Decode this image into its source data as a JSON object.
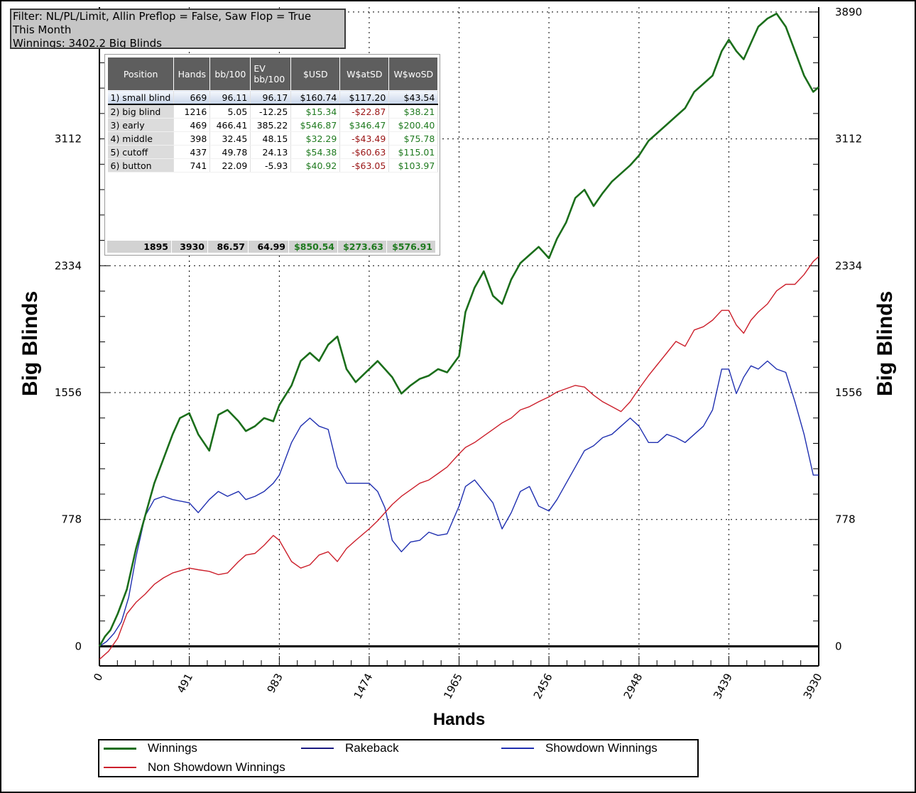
{
  "filter": {
    "line1": "Filter: NL/PL/Limit, Allin Preflop = False, Saw Flop = True",
    "line2": "This Month",
    "line3": "Winnings: 3402.2 Big Blinds"
  },
  "stats_table": {
    "headers": [
      "Position",
      "Hands",
      "bb/100",
      "EV\nbb/100",
      "$USD",
      "W$atSD",
      "W$woSD"
    ],
    "rows": [
      [
        "1) small blind",
        "669",
        "96.11",
        "96.17",
        "$160.74",
        "$117.20",
        "$43.54"
      ],
      [
        "2) big blind",
        "1216",
        "5.05",
        "-12.25",
        "$15.34",
        "-$22.87",
        "$38.21"
      ],
      [
        "3) early",
        "469",
        "466.41",
        "385.22",
        "$546.87",
        "$346.47",
        "$200.40"
      ],
      [
        "4) middle",
        "398",
        "32.45",
        "48.15",
        "$32.29",
        "-$43.49",
        "$75.78"
      ],
      [
        "5) cutoff",
        "437",
        "49.78",
        "24.13",
        "$54.38",
        "-$60.63",
        "$115.01"
      ],
      [
        "6) button",
        "741",
        "22.09",
        "-5.93",
        "$40.92",
        "-$63.05",
        "$103.97"
      ]
    ],
    "totals": [
      "1895",
      "3930",
      "86.57",
      "64.99",
      "$850.54",
      "$273.63",
      "$576.91"
    ]
  },
  "chart_data": {
    "type": "line",
    "xlabel": "Hands",
    "ylabel": "Big Blinds",
    "ylabel_right": "Big Blinds",
    "xlim": [
      0,
      3930
    ],
    "ylim": [
      -120,
      3920
    ],
    "x_ticks": [
      0,
      491,
      983,
      1474,
      1965,
      2456,
      2948,
      3439,
      3930
    ],
    "x_tick_labels": [
      "0",
      "491",
      "983",
      "1474",
      "1965",
      "2456",
      "2948",
      "3439",
      "3930"
    ],
    "y_ticks": [
      0,
      778,
      1556,
      2334,
      3112,
      3890
    ],
    "y_tick_labels": [
      "0",
      "778",
      "1556",
      "2334",
      "3112",
      "3890"
    ],
    "y_ticks_left_labeled": [
      "0",
      "778",
      "1556",
      "2334",
      "3112"
    ],
    "grid": true,
    "legend_position": "bottom",
    "series": [
      {
        "name": "Winnings",
        "color": "#1b6e1b",
        "points": [
          [
            0,
            0
          ],
          [
            30,
            60
          ],
          [
            60,
            100
          ],
          [
            100,
            200
          ],
          [
            150,
            350
          ],
          [
            200,
            600
          ],
          [
            250,
            800
          ],
          [
            300,
            1000
          ],
          [
            350,
            1150
          ],
          [
            400,
            1300
          ],
          [
            440,
            1400
          ],
          [
            491,
            1430
          ],
          [
            540,
            1300
          ],
          [
            600,
            1200
          ],
          [
            650,
            1420
          ],
          [
            700,
            1450
          ],
          [
            760,
            1380
          ],
          [
            800,
            1320
          ],
          [
            850,
            1350
          ],
          [
            900,
            1400
          ],
          [
            950,
            1380
          ],
          [
            983,
            1480
          ],
          [
            1050,
            1600
          ],
          [
            1100,
            1750
          ],
          [
            1150,
            1800
          ],
          [
            1200,
            1750
          ],
          [
            1250,
            1850
          ],
          [
            1300,
            1900
          ],
          [
            1350,
            1700
          ],
          [
            1400,
            1620
          ],
          [
            1474,
            1700
          ],
          [
            1520,
            1750
          ],
          [
            1560,
            1700
          ],
          [
            1600,
            1650
          ],
          [
            1650,
            1550
          ],
          [
            1700,
            1600
          ],
          [
            1750,
            1640
          ],
          [
            1800,
            1660
          ],
          [
            1850,
            1700
          ],
          [
            1900,
            1680
          ],
          [
            1965,
            1780
          ],
          [
            2000,
            2050
          ],
          [
            2050,
            2200
          ],
          [
            2100,
            2300
          ],
          [
            2150,
            2150
          ],
          [
            2200,
            2100
          ],
          [
            2250,
            2250
          ],
          [
            2300,
            2350
          ],
          [
            2350,
            2400
          ],
          [
            2400,
            2450
          ],
          [
            2456,
            2380
          ],
          [
            2500,
            2500
          ],
          [
            2550,
            2600
          ],
          [
            2600,
            2750
          ],
          [
            2650,
            2800
          ],
          [
            2700,
            2700
          ],
          [
            2750,
            2780
          ],
          [
            2800,
            2850
          ],
          [
            2850,
            2900
          ],
          [
            2900,
            2950
          ],
          [
            2948,
            3010
          ],
          [
            3000,
            3100
          ],
          [
            3050,
            3150
          ],
          [
            3100,
            3200
          ],
          [
            3150,
            3250
          ],
          [
            3200,
            3300
          ],
          [
            3250,
            3400
          ],
          [
            3300,
            3450
          ],
          [
            3350,
            3500
          ],
          [
            3400,
            3650
          ],
          [
            3439,
            3720
          ],
          [
            3480,
            3650
          ],
          [
            3520,
            3600
          ],
          [
            3560,
            3700
          ],
          [
            3600,
            3800
          ],
          [
            3650,
            3850
          ],
          [
            3700,
            3880
          ],
          [
            3750,
            3800
          ],
          [
            3800,
            3650
          ],
          [
            3850,
            3500
          ],
          [
            3900,
            3400
          ],
          [
            3930,
            3430
          ]
        ]
      },
      {
        "name": "Rakeback",
        "color": "#1a1a80",
        "points": []
      },
      {
        "name": "Showdown Winnings",
        "color": "#1f2fb0",
        "points": [
          [
            0,
            0
          ],
          [
            40,
            30
          ],
          [
            80,
            80
          ],
          [
            120,
            150
          ],
          [
            160,
            300
          ],
          [
            200,
            550
          ],
          [
            250,
            800
          ],
          [
            300,
            900
          ],
          [
            350,
            920
          ],
          [
            400,
            900
          ],
          [
            491,
            880
          ],
          [
            540,
            820
          ],
          [
            600,
            900
          ],
          [
            650,
            950
          ],
          [
            700,
            920
          ],
          [
            760,
            950
          ],
          [
            800,
            900
          ],
          [
            850,
            920
          ],
          [
            900,
            950
          ],
          [
            950,
            1000
          ],
          [
            983,
            1050
          ],
          [
            1050,
            1250
          ],
          [
            1100,
            1350
          ],
          [
            1150,
            1400
          ],
          [
            1200,
            1350
          ],
          [
            1250,
            1330
          ],
          [
            1300,
            1100
          ],
          [
            1350,
            1000
          ],
          [
            1400,
            1000
          ],
          [
            1474,
            1000
          ],
          [
            1520,
            950
          ],
          [
            1560,
            850
          ],
          [
            1600,
            650
          ],
          [
            1650,
            580
          ],
          [
            1700,
            640
          ],
          [
            1750,
            650
          ],
          [
            1800,
            700
          ],
          [
            1850,
            680
          ],
          [
            1900,
            690
          ],
          [
            1965,
            860
          ],
          [
            2000,
            980
          ],
          [
            2050,
            1020
          ],
          [
            2100,
            950
          ],
          [
            2150,
            880
          ],
          [
            2200,
            720
          ],
          [
            2250,
            820
          ],
          [
            2300,
            950
          ],
          [
            2350,
            980
          ],
          [
            2400,
            860
          ],
          [
            2456,
            830
          ],
          [
            2500,
            900
          ],
          [
            2550,
            1000
          ],
          [
            2600,
            1100
          ],
          [
            2650,
            1200
          ],
          [
            2700,
            1230
          ],
          [
            2750,
            1280
          ],
          [
            2800,
            1300
          ],
          [
            2850,
            1350
          ],
          [
            2900,
            1400
          ],
          [
            2948,
            1350
          ],
          [
            3000,
            1250
          ],
          [
            3050,
            1250
          ],
          [
            3100,
            1300
          ],
          [
            3150,
            1280
          ],
          [
            3200,
            1250
          ],
          [
            3250,
            1300
          ],
          [
            3300,
            1350
          ],
          [
            3350,
            1450
          ],
          [
            3400,
            1700
          ],
          [
            3439,
            1700
          ],
          [
            3480,
            1550
          ],
          [
            3520,
            1650
          ],
          [
            3560,
            1720
          ],
          [
            3600,
            1700
          ],
          [
            3650,
            1750
          ],
          [
            3700,
            1700
          ],
          [
            3750,
            1680
          ],
          [
            3800,
            1500
          ],
          [
            3850,
            1300
          ],
          [
            3900,
            1050
          ],
          [
            3930,
            1050
          ]
        ]
      },
      {
        "name": "Non Showdown Winnings",
        "color": "#cc1f2b",
        "points": [
          [
            0,
            -80
          ],
          [
            50,
            -30
          ],
          [
            100,
            50
          ],
          [
            150,
            200
          ],
          [
            200,
            270
          ],
          [
            250,
            320
          ],
          [
            300,
            380
          ],
          [
            350,
            420
          ],
          [
            400,
            450
          ],
          [
            491,
            480
          ],
          [
            540,
            470
          ],
          [
            600,
            460
          ],
          [
            650,
            440
          ],
          [
            700,
            450
          ],
          [
            760,
            520
          ],
          [
            800,
            560
          ],
          [
            850,
            570
          ],
          [
            900,
            620
          ],
          [
            950,
            680
          ],
          [
            983,
            650
          ],
          [
            1050,
            520
          ],
          [
            1100,
            480
          ],
          [
            1150,
            500
          ],
          [
            1200,
            560
          ],
          [
            1250,
            580
          ],
          [
            1300,
            520
          ],
          [
            1350,
            600
          ],
          [
            1400,
            650
          ],
          [
            1474,
            720
          ],
          [
            1520,
            770
          ],
          [
            1560,
            820
          ],
          [
            1600,
            870
          ],
          [
            1650,
            920
          ],
          [
            1700,
            960
          ],
          [
            1750,
            1000
          ],
          [
            1800,
            1020
          ],
          [
            1850,
            1060
          ],
          [
            1900,
            1100
          ],
          [
            1965,
            1180
          ],
          [
            2000,
            1220
          ],
          [
            2050,
            1250
          ],
          [
            2100,
            1290
          ],
          [
            2150,
            1330
          ],
          [
            2200,
            1370
          ],
          [
            2250,
            1400
          ],
          [
            2300,
            1450
          ],
          [
            2350,
            1470
          ],
          [
            2400,
            1500
          ],
          [
            2456,
            1530
          ],
          [
            2500,
            1560
          ],
          [
            2550,
            1580
          ],
          [
            2600,
            1600
          ],
          [
            2650,
            1590
          ],
          [
            2700,
            1540
          ],
          [
            2750,
            1500
          ],
          [
            2800,
            1470
          ],
          [
            2850,
            1440
          ],
          [
            2900,
            1500
          ],
          [
            2948,
            1580
          ],
          [
            3000,
            1660
          ],
          [
            3050,
            1730
          ],
          [
            3100,
            1800
          ],
          [
            3150,
            1870
          ],
          [
            3200,
            1840
          ],
          [
            3250,
            1940
          ],
          [
            3300,
            1960
          ],
          [
            3350,
            2000
          ],
          [
            3400,
            2060
          ],
          [
            3439,
            2060
          ],
          [
            3480,
            1970
          ],
          [
            3520,
            1920
          ],
          [
            3560,
            2000
          ],
          [
            3600,
            2050
          ],
          [
            3650,
            2100
          ],
          [
            3700,
            2180
          ],
          [
            3750,
            2220
          ],
          [
            3800,
            2220
          ],
          [
            3850,
            2280
          ],
          [
            3900,
            2360
          ],
          [
            3930,
            2390
          ]
        ]
      }
    ],
    "legend": [
      "Winnings",
      "Rakeback",
      "Showdown Winnings",
      "Non Showdown Winnings"
    ]
  }
}
